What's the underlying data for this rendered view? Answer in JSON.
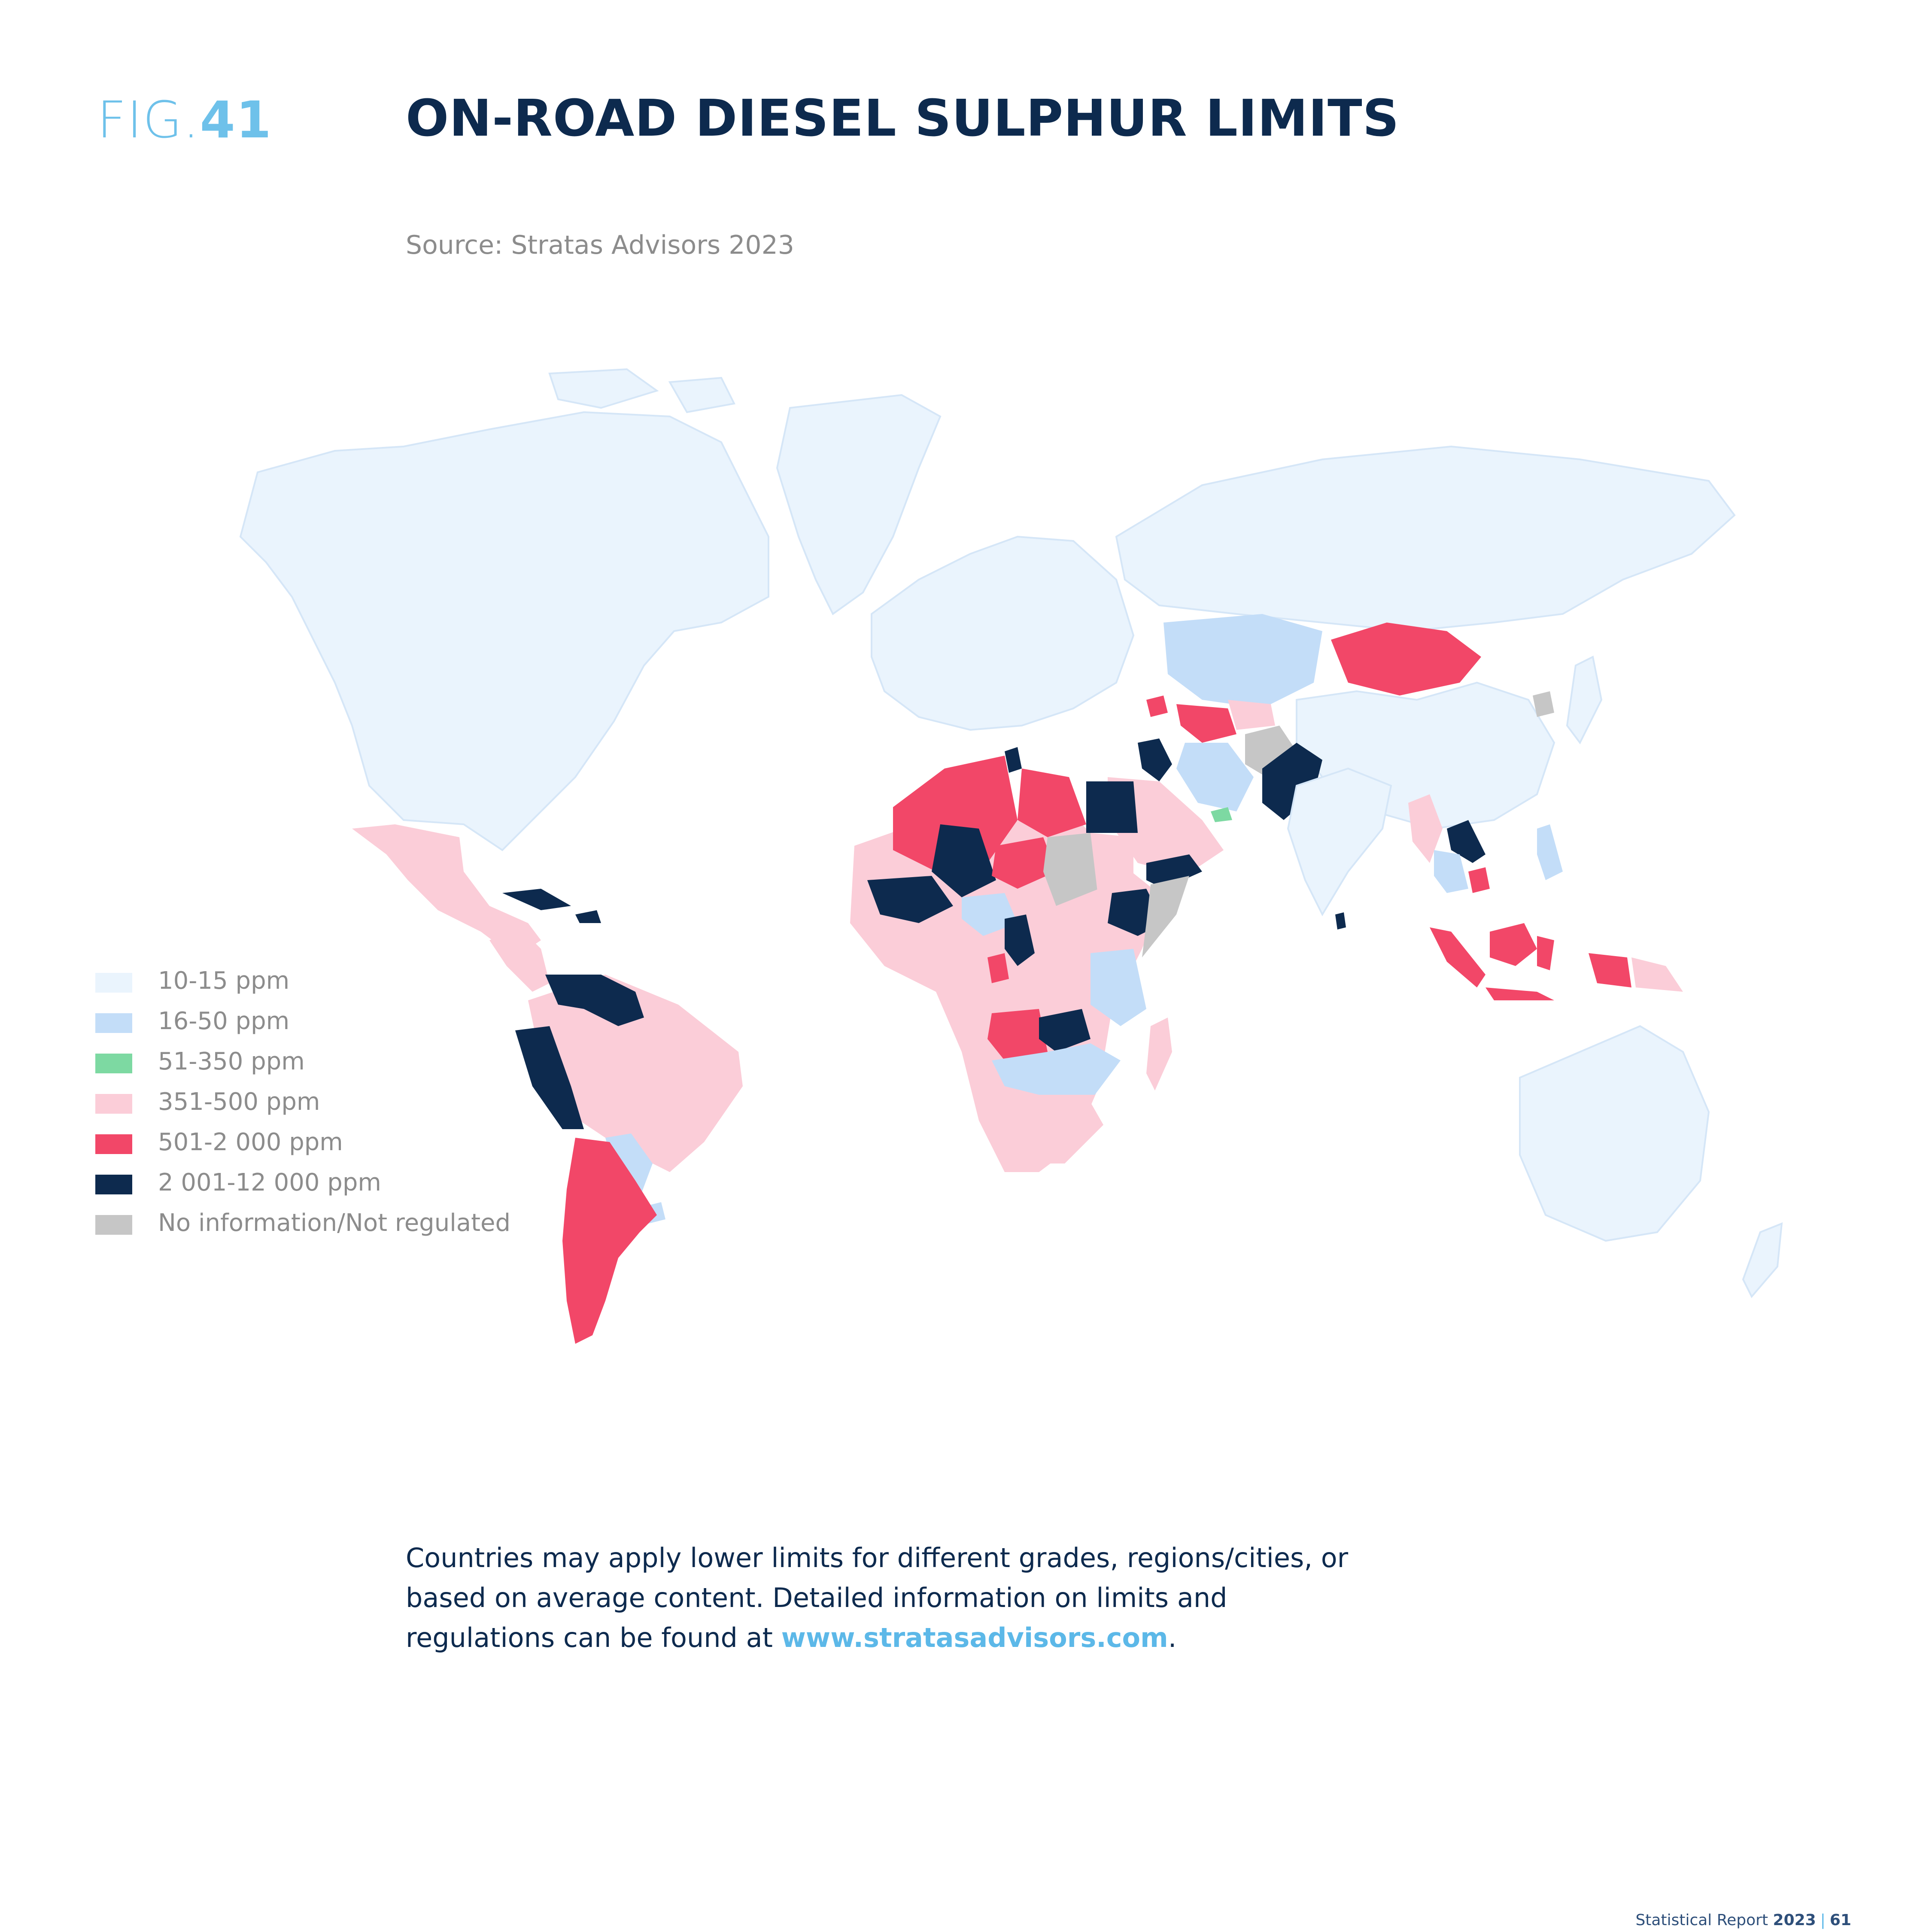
{
  "figure": {
    "prefix": "FIG.",
    "number": "41"
  },
  "title": "ON-ROAD DIESEL SULPHUR LIMITS",
  "source": "Source: Stratas Advisors 2023",
  "legend": [
    {
      "label": "10-15 ppm",
      "color": "#eaf4fd"
    },
    {
      "label": "16-50 ppm",
      "color": "#c3ddf8"
    },
    {
      "label": "51-350 ppm",
      "color": "#7dd9a2"
    },
    {
      "label": "351-500 ppm",
      "color": "#fbcdd8"
    },
    {
      "label": "501-2 000 ppm",
      "color": "#f24768"
    },
    {
      "label": "2 001-12 000 ppm",
      "color": "#0d2a4e"
    },
    {
      "label": "No information/Not regulated",
      "color": "#c6c6c6"
    }
  ],
  "note": {
    "text": "Countries may apply lower limits for different grades, regions/cities, or based on average content. Detailed information on limits and regulations can be found at ",
    "link": "www.stratasadvisors.com",
    "end": "."
  },
  "footer": {
    "text": "Statistical Report ",
    "year": "2023",
    "separator": "|",
    "page": "61"
  }
}
